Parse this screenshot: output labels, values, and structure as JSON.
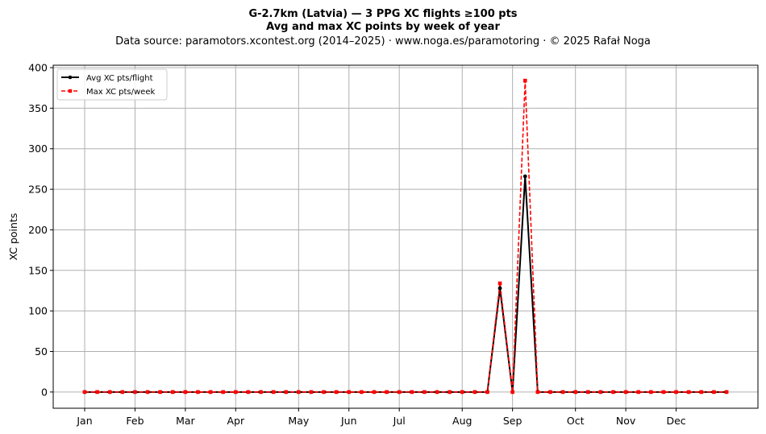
{
  "chart_data": {
    "type": "line",
    "title": "G-2.7km (Latvia)  —  3 PPG XC flights ≥100 pts",
    "subtitle": "Avg and max XC points by week of year",
    "source_line": "Data source: paramotors.xcontest.org (2014–2025)  ·  www.noga.es/paramotoring  ·  © 2025 Rafał Noga",
    "xlabel": "",
    "ylabel": "XC points",
    "xlim": [
      -1.5,
      54.5
    ],
    "ylim": [
      -20,
      403
    ],
    "x_ticks": [
      {
        "label": "Jan",
        "x": 1
      },
      {
        "label": "Feb",
        "x": 5
      },
      {
        "label": "Mar",
        "x": 9
      },
      {
        "label": "Apr",
        "x": 13
      },
      {
        "label": "May",
        "x": 18
      },
      {
        "label": "Jun",
        "x": 22
      },
      {
        "label": "Jul",
        "x": 26
      },
      {
        "label": "Aug",
        "x": 31
      },
      {
        "label": "Sep",
        "x": 35
      },
      {
        "label": "Oct",
        "x": 40
      },
      {
        "label": "Nov",
        "x": 44
      },
      {
        "label": "Dec",
        "x": 48
      }
    ],
    "y_ticks": [
      0,
      50,
      100,
      150,
      200,
      250,
      300,
      350,
      400
    ],
    "grid": true,
    "legend_position": "top-left",
    "x": [
      1,
      2,
      3,
      4,
      5,
      6,
      7,
      8,
      9,
      10,
      11,
      12,
      13,
      14,
      15,
      16,
      17,
      18,
      19,
      20,
      21,
      22,
      23,
      24,
      25,
      26,
      27,
      28,
      29,
      30,
      31,
      32,
      33,
      34,
      35,
      36,
      37,
      38,
      39,
      40,
      41,
      42,
      43,
      44,
      45,
      46,
      47,
      48,
      49,
      50,
      51,
      52
    ],
    "series": [
      {
        "name": "Avg XC pts/flight",
        "color": "#000000",
        "style": "solid",
        "marker": "circle",
        "values": [
          0,
          0,
          0,
          0,
          0,
          0,
          0,
          0,
          0,
          0,
          0,
          0,
          0,
          0,
          0,
          0,
          0,
          0,
          0,
          0,
          0,
          0,
          0,
          0,
          0,
          0,
          0,
          0,
          0,
          0,
          0,
          0,
          0,
          128,
          0,
          266,
          0,
          0,
          0,
          0,
          0,
          0,
          0,
          0,
          0,
          0,
          0,
          0,
          0,
          0,
          0,
          0
        ]
      },
      {
        "name": "Max XC pts/week",
        "color": "#ff0000",
        "style": "dashed",
        "marker": "square",
        "values": [
          0,
          0,
          0,
          0,
          0,
          0,
          0,
          0,
          0,
          0,
          0,
          0,
          0,
          0,
          0,
          0,
          0,
          0,
          0,
          0,
          0,
          0,
          0,
          0,
          0,
          0,
          0,
          0,
          0,
          0,
          0,
          0,
          0,
          134,
          0,
          384,
          0,
          0,
          0,
          0,
          0,
          0,
          0,
          0,
          0,
          0,
          0,
          0,
          0,
          0,
          0,
          0
        ]
      }
    ]
  }
}
